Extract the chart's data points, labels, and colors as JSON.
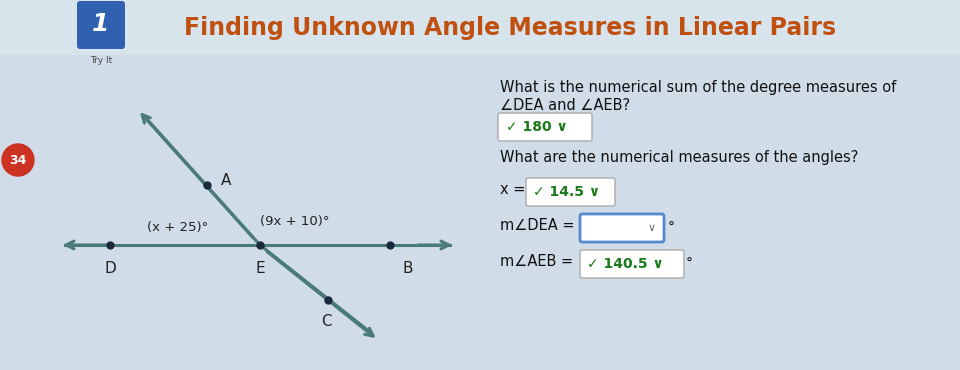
{
  "title": "Finding Unknown Angle Measures in Linear Pairs",
  "title_color": "#C05010",
  "bg_color": "#c8d8e4",
  "header_bg": "#d8e4ec",
  "body_bg": "#d0dce8",
  "question1": "What is the numerical sum of the degree measures of",
  "question1b": "∠DEA and ∠AEB?",
  "answer1_text": "✓ 180 ∨",
  "question2": "What are the numerical measures of the angles?",
  "answer_x_prefix": "x =",
  "answer_x_text": "✓ 14.5 ∨",
  "answer_dea_label": "m∠DEA =",
  "answer_dea_suffix": "°",
  "answer_aeb_label": "m∠AEB =",
  "answer_aeb_text": "✓ 140.5 ∨",
  "answer_aeb_suffix": "°",
  "number_badge": "34",
  "angle1_label": "(x + 25)°",
  "angle2_label": "(9x + 10)°",
  "icon_color": "#3060b0",
  "line_color": "#4a7a7a",
  "dot_color": "#1a2a3a",
  "label_color": "#222222"
}
